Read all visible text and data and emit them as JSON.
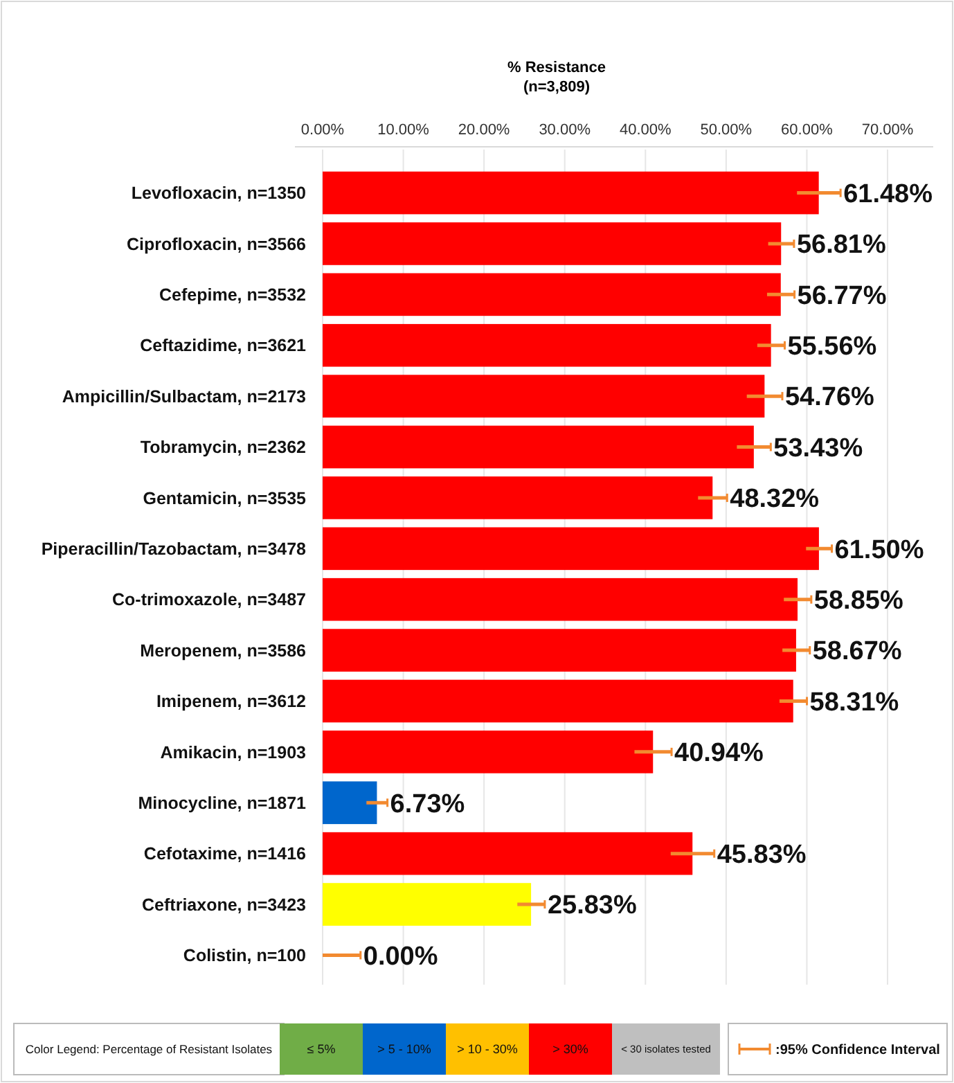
{
  "chart_data": {
    "type": "bar",
    "orientation": "horizontal",
    "title": "% Resistance",
    "subtitle": "(n=3,809)",
    "categories": [
      "Levofloxacin, n=1350",
      "Ciprofloxacin, n=3566",
      "Cefepime, n=3532",
      "Ceftazidime, n=3621",
      "Ampicillin/Sulbactam, n=2173",
      "Tobramycin, n=2362",
      "Gentamicin, n=3535",
      "Piperacillin/Tazobactam, n=3478",
      "Co-trimoxazole, n=3487",
      "Meropenem, n=3586",
      "Imipenem, n=3612",
      "Amikacin, n=1903",
      "Minocycline, n=1871",
      "Cefotaxime, n=1416",
      "Ceftriaxone, n=3423",
      "Colistin, n=100"
    ],
    "values": [
      61.48,
      56.81,
      56.77,
      55.56,
      54.76,
      53.43,
      48.32,
      61.5,
      58.85,
      58.67,
      58.31,
      40.94,
      6.73,
      45.83,
      25.83,
      0
    ],
    "value_labels": [
      "61.48%",
      "56.81%",
      "56.77%",
      "55.56%",
      "54.76%",
      "53.43%",
      "48.32%",
      "61.50%",
      "58.85%",
      "58.67%",
      "58.31%",
      "40.94%",
      "6.73%",
      "45.83%",
      "25.83%",
      "0.00%"
    ],
    "colors": [
      "#ff0000",
      "#ff0000",
      "#ff0000",
      "#ff0000",
      "#ff0000",
      "#ff0000",
      "#ff0000",
      "#ff0000",
      "#ff0000",
      "#ff0000",
      "#ff0000",
      "#ff0000",
      "#0066cc",
      "#ff0000",
      "#ffff00",
      "#ff0000"
    ],
    "errors": [
      2.7,
      1.6,
      1.7,
      1.7,
      2.2,
      2.1,
      1.8,
      1.6,
      1.7,
      1.7,
      1.7,
      2.3,
      1.3,
      2.7,
      1.7,
      [
        0,
        4.7
      ]
    ],
    "xlim": [
      0,
      70
    ],
    "xticks": [
      {
        "value": 0,
        "label": "0.00%"
      },
      {
        "value": 10,
        "label": "10.00%"
      },
      {
        "value": 20,
        "label": "20.00%"
      },
      {
        "value": 30,
        "label": "30.00%"
      },
      {
        "value": 40,
        "label": "40.00%"
      },
      {
        "value": 50,
        "label": "50.00%"
      },
      {
        "value": 60,
        "label": "60.00%"
      },
      {
        "value": 70,
        "label": "70.00%"
      }
    ],
    "grid": "x",
    "annotations": [
      "Color Legend: Percentage of Resistant Isolates",
      "≤ 5%",
      "> 5 - 10%",
      "> 10 - 30%",
      "> 30%",
      "< 30 isolates tested",
      ":95% Confidence Interval"
    ]
  }
}
